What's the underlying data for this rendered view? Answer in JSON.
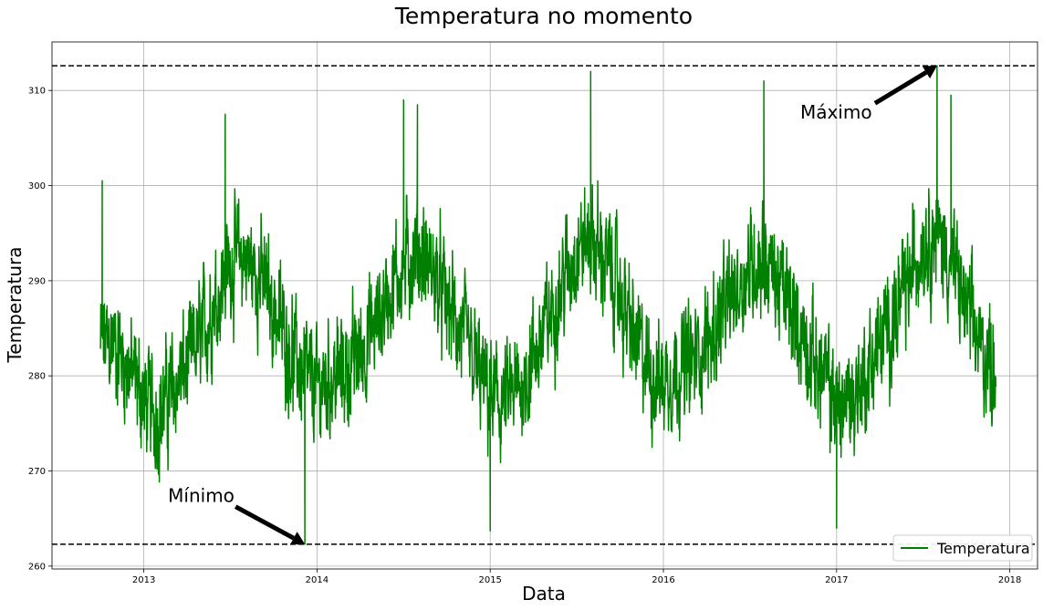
{
  "chart_data": {
    "type": "line",
    "title": "Temperatura no momento",
    "xlabel": "Data",
    "ylabel": "Temperatura",
    "xlim": [
      2012.47,
      2018.16
    ],
    "ylim": [
      259.7,
      315.1
    ],
    "xticks": [
      2013,
      2014,
      2015,
      2016,
      2017,
      2018
    ],
    "xtick_labels": [
      "2013",
      "2014",
      "2015",
      "2016",
      "2017",
      "2018"
    ],
    "yticks": [
      260,
      270,
      280,
      290,
      300,
      310
    ],
    "ytick_labels": [
      "260",
      "270",
      "280",
      "290",
      "300",
      "310"
    ],
    "grid": true,
    "legend": {
      "position": "lower-right",
      "entries": [
        "Temperatura"
      ]
    },
    "series": [
      {
        "name": "Temperatura",
        "color": "#008000",
        "x_range": [
          2012.75,
          2017.92
        ],
        "points": [
          [
            2012.75,
            283.0
          ],
          [
            2012.83,
            283.5
          ],
          [
            2012.92,
            280.5
          ],
          [
            2013.0,
            277.5
          ],
          [
            2013.08,
            276.0
          ],
          [
            2013.17,
            278.5
          ],
          [
            2013.25,
            281.0
          ],
          [
            2013.33,
            284.0
          ],
          [
            2013.42,
            288.5
          ],
          [
            2013.5,
            292.0
          ],
          [
            2013.58,
            292.5
          ],
          [
            2013.67,
            290.5
          ],
          [
            2013.75,
            287.0
          ],
          [
            2013.83,
            283.5
          ],
          [
            2013.92,
            280.0
          ],
          [
            2014.0,
            278.5
          ],
          [
            2014.08,
            280.0
          ],
          [
            2014.17,
            280.5
          ],
          [
            2014.25,
            282.5
          ],
          [
            2014.33,
            285.0
          ],
          [
            2014.42,
            289.0
          ],
          [
            2014.5,
            291.5
          ],
          [
            2014.58,
            293.0
          ],
          [
            2014.67,
            291.0
          ],
          [
            2014.75,
            287.5
          ],
          [
            2014.83,
            284.5
          ],
          [
            2014.92,
            280.5
          ],
          [
            2015.0,
            277.5
          ],
          [
            2015.08,
            277.0
          ],
          [
            2015.17,
            278.5
          ],
          [
            2015.25,
            282.0
          ],
          [
            2015.33,
            285.5
          ],
          [
            2015.42,
            290.0
          ],
          [
            2015.5,
            293.5
          ],
          [
            2015.58,
            294.5
          ],
          [
            2015.67,
            292.0
          ],
          [
            2015.75,
            288.5
          ],
          [
            2015.83,
            284.0
          ],
          [
            2015.92,
            280.5
          ],
          [
            2016.0,
            279.5
          ],
          [
            2016.08,
            281.0
          ],
          [
            2016.17,
            281.5
          ],
          [
            2016.25,
            283.5
          ],
          [
            2016.33,
            286.0
          ],
          [
            2016.42,
            289.0
          ],
          [
            2016.5,
            291.5
          ],
          [
            2016.58,
            292.5
          ],
          [
            2016.67,
            289.5
          ],
          [
            2016.75,
            286.5
          ],
          [
            2016.83,
            283.0
          ],
          [
            2016.92,
            280.0
          ],
          [
            2017.0,
            277.0
          ],
          [
            2017.08,
            277.5
          ],
          [
            2017.17,
            280.0
          ],
          [
            2017.25,
            283.5
          ],
          [
            2017.33,
            286.0
          ],
          [
            2017.42,
            290.0
          ],
          [
            2017.5,
            294.5
          ],
          [
            2017.58,
            295.0
          ],
          [
            2017.67,
            291.5
          ],
          [
            2017.75,
            287.0
          ],
          [
            2017.83,
            283.0
          ],
          [
            2017.92,
            281.0
          ]
        ],
        "noise_amplitude": 5.5,
        "extremes": [
          [
            2012.76,
            300.5
          ],
          [
            2013.47,
            307.5
          ],
          [
            2013.93,
            262.3
          ],
          [
            2014.5,
            309.0
          ],
          [
            2014.58,
            308.5
          ],
          [
            2015.0,
            263.7
          ],
          [
            2015.58,
            312.0
          ],
          [
            2016.58,
            311.0
          ],
          [
            2017.0,
            264.0
          ],
          [
            2017.58,
            312.6
          ],
          [
            2017.66,
            309.5
          ]
        ]
      }
    ],
    "reference_lines": [
      312.6,
      262.3
    ],
    "annotations": [
      {
        "text": "Máximo",
        "text_xy": [
          2016.79,
          307.7
        ],
        "point_xy": [
          2017.58,
          312.6
        ]
      },
      {
        "text": "Mínimo",
        "text_xy": [
          2013.14,
          267.4
        ],
        "point_xy": [
          2013.93,
          262.3
        ]
      }
    ]
  }
}
